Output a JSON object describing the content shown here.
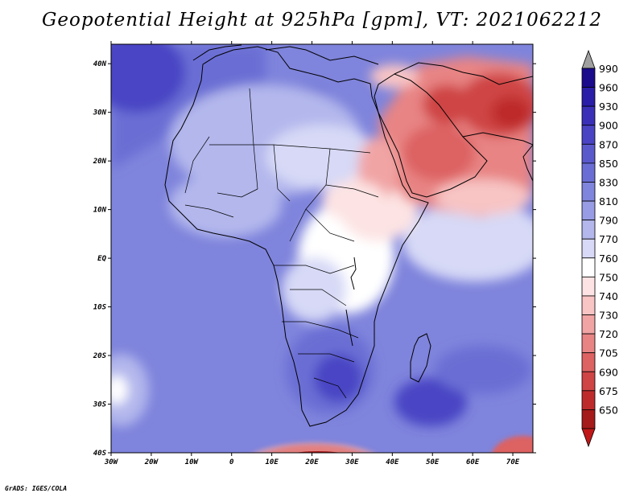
{
  "title": "Geopotential Height at 925hPa [gpm], VT: 2021062212",
  "credit": "GrADS: IGES/COLA",
  "map": {
    "lat_labels": [
      "40N",
      "30N",
      "20N",
      "10N",
      "EQ",
      "10S",
      "20S",
      "30S",
      "40S"
    ],
    "lon_labels": [
      "30W",
      "20W",
      "10W",
      "0",
      "10E",
      "20E",
      "30E",
      "40E",
      "50E",
      "60E",
      "70E"
    ],
    "lat_range": [
      -40,
      44
    ],
    "lon_range": [
      -30,
      75
    ]
  },
  "colorbar": {
    "labels": [
      "990",
      "960",
      "930",
      "900",
      "870",
      "850",
      "830",
      "810",
      "790",
      "770",
      "760",
      "750",
      "740",
      "730",
      "720",
      "705",
      "690",
      "675",
      "650"
    ],
    "colors": [
      "#1a0a8c",
      "#2a1da8",
      "#3a30b8",
      "#4a44c4",
      "#5a59cc",
      "#6a6ed4",
      "#7f84dc",
      "#979ce4",
      "#b3b7ec",
      "#d7d9f6",
      "#ffffff",
      "#fde3e3",
      "#f8c4c4",
      "#f1a4a4",
      "#e88484",
      "#dd6262",
      "#cf4444",
      "#be2b2b",
      "#a51a1a"
    ],
    "top_arrow_color": "#a0a0a0",
    "bottom_arrow_color": "#c01818"
  }
}
